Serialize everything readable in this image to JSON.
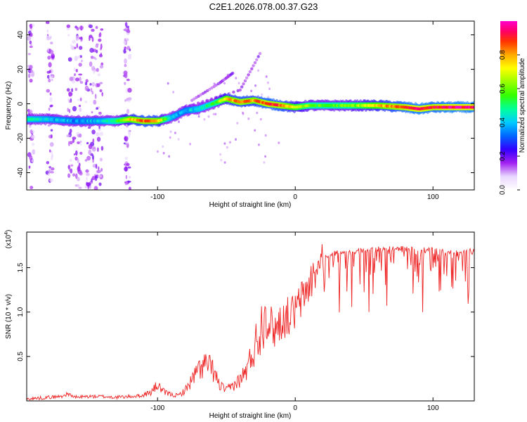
{
  "title": "C2E1.2026.078.00.37.G23",
  "chart_data": [
    {
      "type": "heatmap",
      "name": "spectrogram",
      "xlabel": "Height of straight line (km)",
      "ylabel": "Frequency (Hz)",
      "xlim": [
        -195,
        130
      ],
      "ylim": [
        -50,
        48
      ],
      "xticks": [
        -100,
        0,
        100
      ],
      "xtick_labels": [
        "-100",
        "0",
        "100"
      ],
      "yticks": [
        -40,
        -20,
        0,
        20,
        40
      ],
      "ytick_labels": [
        "-40",
        "-20",
        "0",
        "20",
        "40"
      ],
      "ridge": {
        "x": [
          -195,
          -180,
          -160,
          -140,
          -130,
          -120,
          -110,
          -100,
          -90,
          -80,
          -70,
          -60,
          -50,
          -40,
          -30,
          -20,
          -10,
          0,
          10,
          20,
          40,
          60,
          80,
          90,
          100,
          110,
          130
        ],
        "y": [
          -9,
          -9,
          -10,
          -10,
          -10,
          -9,
          -10,
          -10,
          -8,
          -4,
          -3,
          0,
          3,
          1,
          2,
          0,
          -1,
          -2,
          -1,
          -1,
          -1,
          -1,
          -2,
          -3,
          -2,
          -2,
          -2
        ],
        "amplitude": [
          0.45,
          0.4,
          0.35,
          0.4,
          0.55,
          0.75,
          0.85,
          0.8,
          0.4,
          0.35,
          0.45,
          0.5,
          0.75,
          0.85,
          0.8,
          0.9,
          0.85,
          0.7,
          0.6,
          0.55,
          0.6,
          0.75,
          0.9,
          0.95,
          0.9,
          0.95,
          0.95
        ]
      },
      "colorbar": {
        "label": "Normalized spectral amplitude",
        "ticks": [
          0.0,
          0.2,
          0.4,
          0.6,
          0.8
        ],
        "tick_labels": [
          "0.0",
          "0.2",
          "0.4",
          "0.6",
          "0.8"
        ],
        "range": [
          0,
          1
        ]
      }
    },
    {
      "type": "line",
      "name": "snr",
      "xlabel": "Height of straight line (km)",
      "ylabel": "SNR (10 * v/v)",
      "multiplier_label": "(x10",
      "multiplier_exp": "4",
      "multiplier_close": ")",
      "xlim": [
        -195,
        130
      ],
      "ylim": [
        0,
        1.9
      ],
      "xticks": [
        -100,
        0,
        100
      ],
      "xtick_labels": [
        "-100",
        "0",
        "100"
      ],
      "yticks": [
        0.5,
        1.0,
        1.5
      ],
      "ytick_labels": [
        "0.5",
        "1.0",
        "1.5"
      ],
      "color": "#ee2222",
      "series": [
        {
          "name": "SNR",
          "x": [
            -195,
            -180,
            -170,
            -165,
            -160,
            -150,
            -140,
            -130,
            -120,
            -110,
            -105,
            -100,
            -95,
            -90,
            -85,
            -80,
            -75,
            -70,
            -65,
            -60,
            -55,
            -50,
            -45,
            -40,
            -35,
            -30,
            -25,
            -20,
            -15,
            -10,
            -5,
            0,
            5,
            10,
            15,
            20,
            25,
            30,
            40,
            50,
            60,
            70,
            80,
            90,
            100,
            110,
            120,
            130
          ],
          "y": [
            0.02,
            0.04,
            0.05,
            0.08,
            0.04,
            0.05,
            0.05,
            0.04,
            0.05,
            0.06,
            0.08,
            0.15,
            0.08,
            0.06,
            0.05,
            0.1,
            0.2,
            0.3,
            0.35,
            0.3,
            0.15,
            0.1,
            0.15,
            0.2,
            0.3,
            0.5,
            0.7,
            0.95,
            0.85,
            0.95,
            1.0,
            1.05,
            1.2,
            1.35,
            1.5,
            1.6,
            1.65,
            1.67,
            1.68,
            1.7,
            1.72,
            1.72,
            1.72,
            1.7,
            1.72,
            1.68,
            1.68,
            1.7
          ]
        }
      ]
    }
  ]
}
